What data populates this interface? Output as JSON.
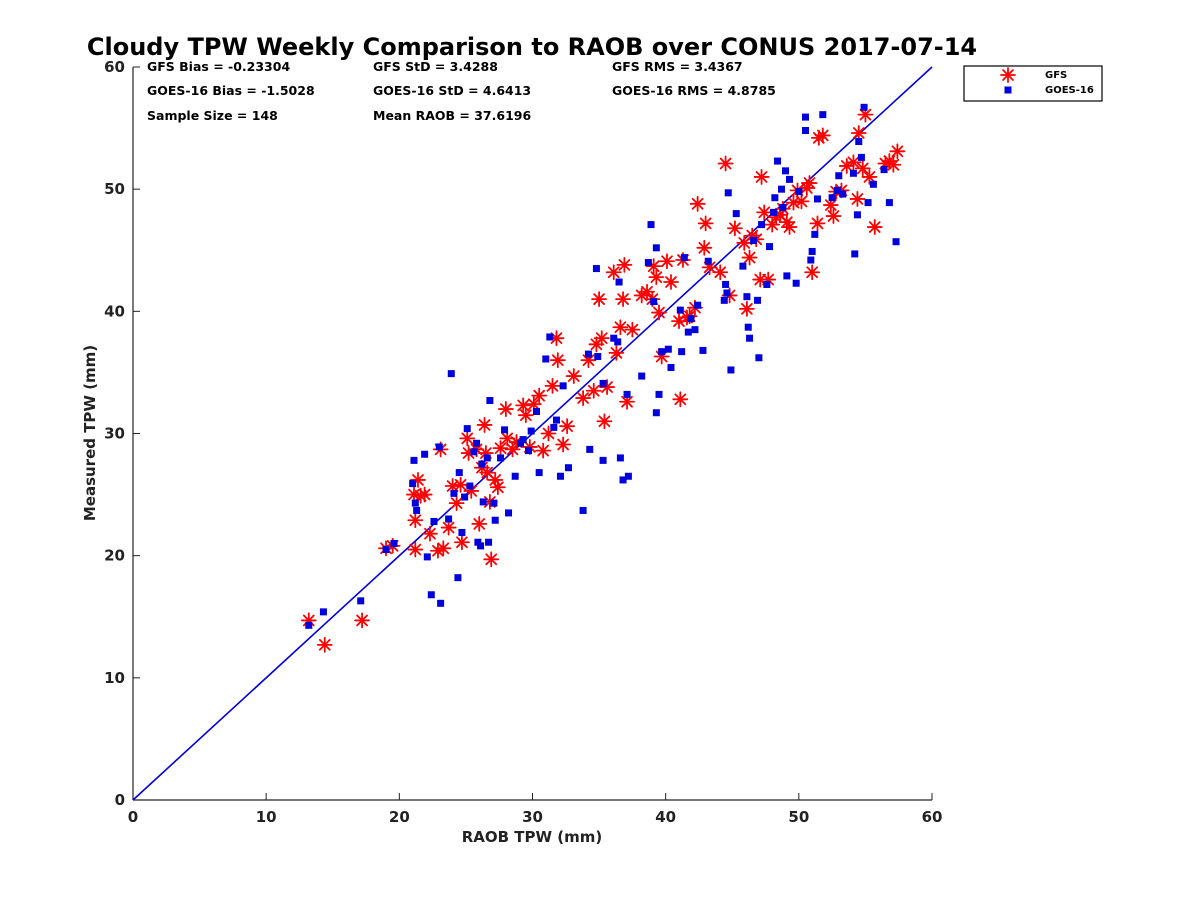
{
  "chart_data": {
    "type": "scatter",
    "title": "Cloudy TPW Weekly Comparison to RAOB over CONUS 2017-07-14",
    "xlabel": "RAOB TPW (mm)",
    "ylabel": "Measured TPW (mm)",
    "xlim": [
      0,
      60
    ],
    "ylim": [
      0,
      60
    ],
    "xticks": [
      0,
      10,
      20,
      30,
      40,
      50,
      60
    ],
    "yticks": [
      0,
      10,
      20,
      30,
      40,
      50,
      60
    ],
    "grid": false,
    "legend_position": "outside-top-right",
    "reference_line": {
      "from": [
        0,
        0
      ],
      "to": [
        60,
        60
      ],
      "color": "#0000dd"
    },
    "stats": [
      [
        "GFS Bias = -0.23304",
        "GFS StD = 3.4288",
        "GFS RMS = 3.4367"
      ],
      [
        "GOES-16 Bias = -1.5028",
        "GOES-16 StD = 4.6413",
        "GOES-16 RMS = 4.8785"
      ],
      [
        "Sample Size = 148",
        "Mean RAOB = 37.6196",
        ""
      ]
    ],
    "series": [
      {
        "name": "GFS",
        "marker": "asterisk",
        "color": "#ff0000",
        "points": [
          [
            13.2,
            14.7
          ],
          [
            14.4,
            12.7
          ],
          [
            17.2,
            14.7
          ],
          [
            19.0,
            20.6
          ],
          [
            19.5,
            20.8
          ],
          [
            21.1,
            25.0
          ],
          [
            21.2,
            22.9
          ],
          [
            21.2,
            20.5
          ],
          [
            21.4,
            26.2
          ],
          [
            21.6,
            24.9
          ],
          [
            21.9,
            25.0
          ],
          [
            22.3,
            21.8
          ],
          [
            22.9,
            20.4
          ],
          [
            23.1,
            28.7
          ],
          [
            23.3,
            20.6
          ],
          [
            23.7,
            22.3
          ],
          [
            24.0,
            25.7
          ],
          [
            24.3,
            24.3
          ],
          [
            24.6,
            25.8
          ],
          [
            24.7,
            21.1
          ],
          [
            25.1,
            29.6
          ],
          [
            25.2,
            28.4
          ],
          [
            25.4,
            25.3
          ],
          [
            25.8,
            28.7
          ],
          [
            26.0,
            22.6
          ],
          [
            26.2,
            27.2
          ],
          [
            26.4,
            30.7
          ],
          [
            26.5,
            28.4
          ],
          [
            26.6,
            26.8
          ],
          [
            26.8,
            24.4
          ],
          [
            26.9,
            19.7
          ],
          [
            27.2,
            26.2
          ],
          [
            27.4,
            25.6
          ],
          [
            27.6,
            28.8
          ],
          [
            28.0,
            32.0
          ],
          [
            28.1,
            29.6
          ],
          [
            28.5,
            28.7
          ],
          [
            28.8,
            29.3
          ],
          [
            29.3,
            32.3
          ],
          [
            29.5,
            31.5
          ],
          [
            29.8,
            28.9
          ],
          [
            30.1,
            32.4
          ],
          [
            30.5,
            33.1
          ],
          [
            30.8,
            28.6
          ],
          [
            31.2,
            30.0
          ],
          [
            31.5,
            33.9
          ],
          [
            31.8,
            37.8
          ],
          [
            31.9,
            36.0
          ],
          [
            32.3,
            29.1
          ],
          [
            32.6,
            30.6
          ],
          [
            33.1,
            34.7
          ],
          [
            33.8,
            32.9
          ],
          [
            34.2,
            36.0
          ],
          [
            34.6,
            33.5
          ],
          [
            34.8,
            37.3
          ],
          [
            35.0,
            41.0
          ],
          [
            35.2,
            37.8
          ],
          [
            35.4,
            31.0
          ],
          [
            35.6,
            33.8
          ],
          [
            36.1,
            43.2
          ],
          [
            36.3,
            36.6
          ],
          [
            36.6,
            38.7
          ],
          [
            36.8,
            41.0
          ],
          [
            36.9,
            43.8
          ],
          [
            37.1,
            32.6
          ],
          [
            37.5,
            38.5
          ],
          [
            38.2,
            41.3
          ],
          [
            38.6,
            41.6
          ],
          [
            39.0,
            41.0
          ],
          [
            39.1,
            43.7
          ],
          [
            39.3,
            42.8
          ],
          [
            39.5,
            39.9
          ],
          [
            39.7,
            36.3
          ],
          [
            40.1,
            44.1
          ],
          [
            40.4,
            42.4
          ],
          [
            41.0,
            39.2
          ],
          [
            41.1,
            32.8
          ],
          [
            41.3,
            44.2
          ],
          [
            41.6,
            39.5
          ],
          [
            41.8,
            39.6
          ],
          [
            42.2,
            40.3
          ],
          [
            42.4,
            48.8
          ],
          [
            42.9,
            45.2
          ],
          [
            43.0,
            47.2
          ],
          [
            43.3,
            43.6
          ],
          [
            44.1,
            43.2
          ],
          [
            44.5,
            52.1
          ],
          [
            44.8,
            41.3
          ],
          [
            45.2,
            46.8
          ],
          [
            45.9,
            45.6
          ],
          [
            46.1,
            40.2
          ],
          [
            46.3,
            44.4
          ],
          [
            46.5,
            46.2
          ],
          [
            46.8,
            45.9
          ],
          [
            47.1,
            42.6
          ],
          [
            47.2,
            51.0
          ],
          [
            47.4,
            48.1
          ],
          [
            47.7,
            42.6
          ],
          [
            48.0,
            47.1
          ],
          [
            48.3,
            47.7
          ],
          [
            48.6,
            47.9
          ],
          [
            48.8,
            48.4
          ],
          [
            49.1,
            47.3
          ],
          [
            49.3,
            46.9
          ],
          [
            49.6,
            48.9
          ],
          [
            49.9,
            49.9
          ],
          [
            50.2,
            49.0
          ],
          [
            50.6,
            50.1
          ],
          [
            50.8,
            50.5
          ],
          [
            51.0,
            43.2
          ],
          [
            51.4,
            47.2
          ],
          [
            51.5,
            54.2
          ],
          [
            51.8,
            54.4
          ],
          [
            52.4,
            48.7
          ],
          [
            52.6,
            47.8
          ],
          [
            52.8,
            49.8
          ],
          [
            53.2,
            49.9
          ],
          [
            53.6,
            51.9
          ],
          [
            54.1,
            52.2
          ],
          [
            54.4,
            49.2
          ],
          [
            54.5,
            54.6
          ],
          [
            54.8,
            51.7
          ],
          [
            55.0,
            56.1
          ],
          [
            55.3,
            51.0
          ],
          [
            55.7,
            46.9
          ],
          [
            56.5,
            52.1
          ],
          [
            56.8,
            52.3
          ],
          [
            57.1,
            52.0
          ],
          [
            57.4,
            53.1
          ]
        ]
      },
      {
        "name": "GOES-16",
        "marker": "square",
        "color": "#0000dd",
        "points": [
          [
            13.2,
            14.3
          ],
          [
            14.3,
            15.4
          ],
          [
            17.1,
            16.3
          ],
          [
            19.0,
            20.5
          ],
          [
            19.6,
            21.0
          ],
          [
            21.0,
            25.9
          ],
          [
            21.1,
            27.8
          ],
          [
            21.2,
            24.3
          ],
          [
            21.3,
            23.7
          ],
          [
            21.9,
            28.3
          ],
          [
            22.1,
            19.9
          ],
          [
            22.4,
            16.8
          ],
          [
            22.6,
            22.8
          ],
          [
            23.0,
            28.9
          ],
          [
            23.1,
            16.1
          ],
          [
            23.7,
            23.0
          ],
          [
            23.9,
            34.9
          ],
          [
            24.1,
            25.1
          ],
          [
            24.4,
            18.2
          ],
          [
            24.5,
            26.8
          ],
          [
            24.7,
            21.9
          ],
          [
            24.9,
            24.8
          ],
          [
            25.1,
            30.4
          ],
          [
            25.3,
            25.7
          ],
          [
            25.6,
            28.5
          ],
          [
            25.8,
            29.2
          ],
          [
            25.9,
            21.1
          ],
          [
            26.1,
            20.8
          ],
          [
            26.2,
            27.5
          ],
          [
            26.3,
            24.4
          ],
          [
            26.6,
            28.0
          ],
          [
            26.7,
            21.1
          ],
          [
            26.8,
            32.7
          ],
          [
            27.1,
            24.3
          ],
          [
            27.2,
            22.9
          ],
          [
            27.6,
            28.0
          ],
          [
            27.9,
            30.3
          ],
          [
            28.2,
            23.5
          ],
          [
            28.7,
            26.5
          ],
          [
            29.1,
            29.2
          ],
          [
            29.3,
            29.5
          ],
          [
            29.7,
            28.6
          ],
          [
            29.9,
            30.2
          ],
          [
            30.3,
            31.8
          ],
          [
            30.5,
            26.8
          ],
          [
            31.0,
            36.1
          ],
          [
            31.3,
            37.9
          ],
          [
            31.6,
            30.5
          ],
          [
            31.8,
            31.1
          ],
          [
            32.1,
            26.5
          ],
          [
            32.3,
            33.9
          ],
          [
            32.7,
            27.2
          ],
          [
            33.8,
            23.7
          ],
          [
            34.2,
            36.5
          ],
          [
            34.3,
            28.7
          ],
          [
            34.8,
            43.5
          ],
          [
            34.9,
            36.3
          ],
          [
            35.3,
            34.1
          ],
          [
            35.3,
            27.8
          ],
          [
            36.1,
            37.8
          ],
          [
            36.4,
            37.5
          ],
          [
            36.5,
            42.4
          ],
          [
            36.6,
            28.0
          ],
          [
            36.8,
            26.2
          ],
          [
            37.1,
            33.2
          ],
          [
            37.2,
            26.5
          ],
          [
            38.2,
            34.7
          ],
          [
            38.7,
            44.0
          ],
          [
            38.9,
            47.1
          ],
          [
            39.1,
            40.8
          ],
          [
            39.3,
            45.2
          ],
          [
            39.3,
            31.7
          ],
          [
            39.5,
            33.2
          ],
          [
            39.7,
            36.7
          ],
          [
            40.2,
            36.9
          ],
          [
            40.4,
            35.4
          ],
          [
            41.1,
            40.1
          ],
          [
            41.2,
            36.7
          ],
          [
            41.4,
            44.4
          ],
          [
            41.7,
            38.3
          ],
          [
            41.9,
            39.4
          ],
          [
            42.2,
            38.5
          ],
          [
            42.4,
            40.5
          ],
          [
            42.8,
            36.8
          ],
          [
            43.2,
            44.1
          ],
          [
            44.4,
            40.9
          ],
          [
            44.5,
            42.2
          ],
          [
            44.6,
            41.5
          ],
          [
            44.7,
            49.7
          ],
          [
            44.9,
            35.2
          ],
          [
            45.3,
            48.0
          ],
          [
            45.8,
            43.7
          ],
          [
            46.1,
            41.2
          ],
          [
            46.2,
            38.7
          ],
          [
            46.3,
            37.8
          ],
          [
            46.6,
            45.8
          ],
          [
            46.9,
            40.9
          ],
          [
            47.0,
            36.2
          ],
          [
            47.2,
            47.1
          ],
          [
            47.6,
            42.2
          ],
          [
            47.8,
            45.3
          ],
          [
            48.1,
            48.1
          ],
          [
            48.2,
            49.3
          ],
          [
            48.4,
            52.3
          ],
          [
            48.7,
            50.0
          ],
          [
            48.8,
            48.5
          ],
          [
            49.0,
            51.5
          ],
          [
            49.1,
            42.9
          ],
          [
            49.3,
            50.8
          ],
          [
            49.8,
            42.3
          ],
          [
            50.0,
            49.8
          ],
          [
            50.5,
            55.9
          ],
          [
            50.5,
            54.8
          ],
          [
            50.9,
            44.2
          ],
          [
            51.0,
            44.9
          ],
          [
            51.2,
            46.3
          ],
          [
            51.4,
            49.2
          ],
          [
            51.8,
            56.1
          ],
          [
            52.5,
            49.3
          ],
          [
            52.9,
            49.9
          ],
          [
            53.0,
            51.1
          ],
          [
            53.3,
            49.6
          ],
          [
            54.1,
            51.3
          ],
          [
            54.2,
            44.7
          ],
          [
            54.4,
            47.9
          ],
          [
            54.5,
            53.9
          ],
          [
            54.7,
            52.6
          ],
          [
            54.9,
            56.7
          ],
          [
            55.2,
            48.9
          ],
          [
            55.6,
            50.4
          ],
          [
            56.4,
            51.6
          ],
          [
            56.8,
            48.9
          ],
          [
            57.3,
            45.7
          ]
        ]
      }
    ]
  }
}
